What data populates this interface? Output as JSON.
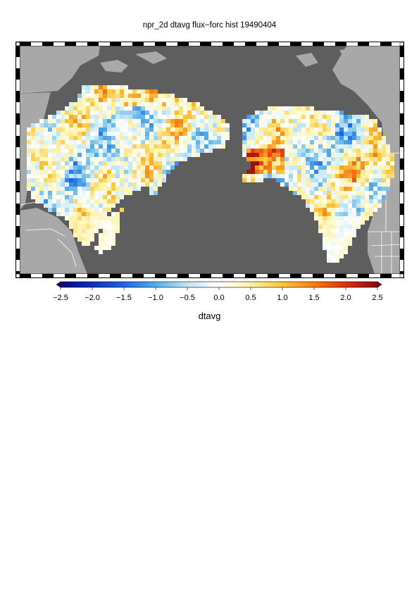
{
  "title": "npr_2d dtavg flux−forc hist 19490404",
  "colorbar": {
    "label": "dtavg",
    "min": -2.5,
    "max": 2.5,
    "ticks": [
      "−2.5",
      "−2.0",
      "−1.5",
      "−1.0",
      "−0.5",
      "0.0",
      "0.5",
      "1.0",
      "1.5",
      "2.0",
      "2.5"
    ],
    "stops": [
      {
        "v": -2.5,
        "c": "#0a0a7a"
      },
      {
        "v": -2.0,
        "c": "#0b2fb8"
      },
      {
        "v": -1.5,
        "c": "#1f66e0"
      },
      {
        "v": -1.0,
        "c": "#55aee8"
      },
      {
        "v": -0.5,
        "c": "#bfe6f5"
      },
      {
        "v": 0.0,
        "c": "#ffffff"
      },
      {
        "v": 0.5,
        "c": "#fff3a8"
      },
      {
        "v": 1.0,
        "c": "#fcc43c"
      },
      {
        "v": 1.5,
        "c": "#f57f14"
      },
      {
        "v": 2.0,
        "c": "#dc2f0c"
      },
      {
        "v": 2.5,
        "c": "#8c0a0a"
      }
    ]
  },
  "map": {
    "ocean_color": "#5e5e5e",
    "land_color": "#a8a8a8",
    "border_color": "#ffffff",
    "value_range": [
      -2.5,
      2.5
    ]
  }
}
